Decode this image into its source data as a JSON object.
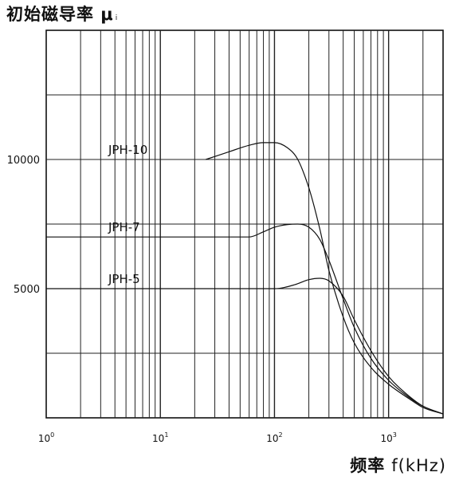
{
  "chart_data": {
    "type": "line",
    "ylabel": "初始磁导率 μ",
    "ylabel_subscript": "i",
    "xlabel": "频率",
    "xlabel_unit": "f(kHz)",
    "x_scale": "log",
    "xlim": [
      1,
      3000
    ],
    "ylim": [
      0,
      15000
    ],
    "x_ticks": [
      1,
      10,
      100,
      1000
    ],
    "x_tick_labels": [
      {
        "base": "10",
        "exp": "0"
      },
      {
        "base": "10",
        "exp": "1"
      },
      {
        "base": "10",
        "exp": "2"
      },
      {
        "base": "10",
        "exp": "3"
      }
    ],
    "y_ticks": [
      5000,
      10000
    ],
    "y_tick_labels": [
      "5000",
      "10000"
    ],
    "grid": true,
    "series": [
      {
        "name": "JPH-10",
        "x": [
          25,
          40,
          60,
          80,
          100,
          130,
          160,
          200,
          250,
          300,
          400,
          500,
          700,
          1000,
          1500,
          2000,
          3000
        ],
        "y": [
          10000,
          10300,
          10550,
          10650,
          10650,
          10450,
          10000,
          8900,
          7300,
          5700,
          3900,
          2900,
          1950,
          1300,
          750,
          400,
          150
        ]
      },
      {
        "name": "JPH-7",
        "x": [
          1,
          60,
          80,
          100,
          130,
          160,
          200,
          250,
          300,
          400,
          500,
          700,
          1000,
          1500,
          2000,
          3000
        ],
        "y": [
          7000,
          7000,
          7200,
          7380,
          7480,
          7500,
          7380,
          6900,
          6100,
          4600,
          3500,
          2300,
          1450,
          800,
          450,
          150
        ]
      },
      {
        "name": "JPH-5",
        "x": [
          1,
          100,
          150,
          200,
          250,
          300,
          400,
          500,
          700,
          1000,
          1500,
          2000,
          3000
        ],
        "y": [
          5000,
          5000,
          5150,
          5350,
          5400,
          5300,
          4700,
          3800,
          2600,
          1600,
          850,
          450,
          150
        ]
      }
    ],
    "legend": "inline labels"
  }
}
